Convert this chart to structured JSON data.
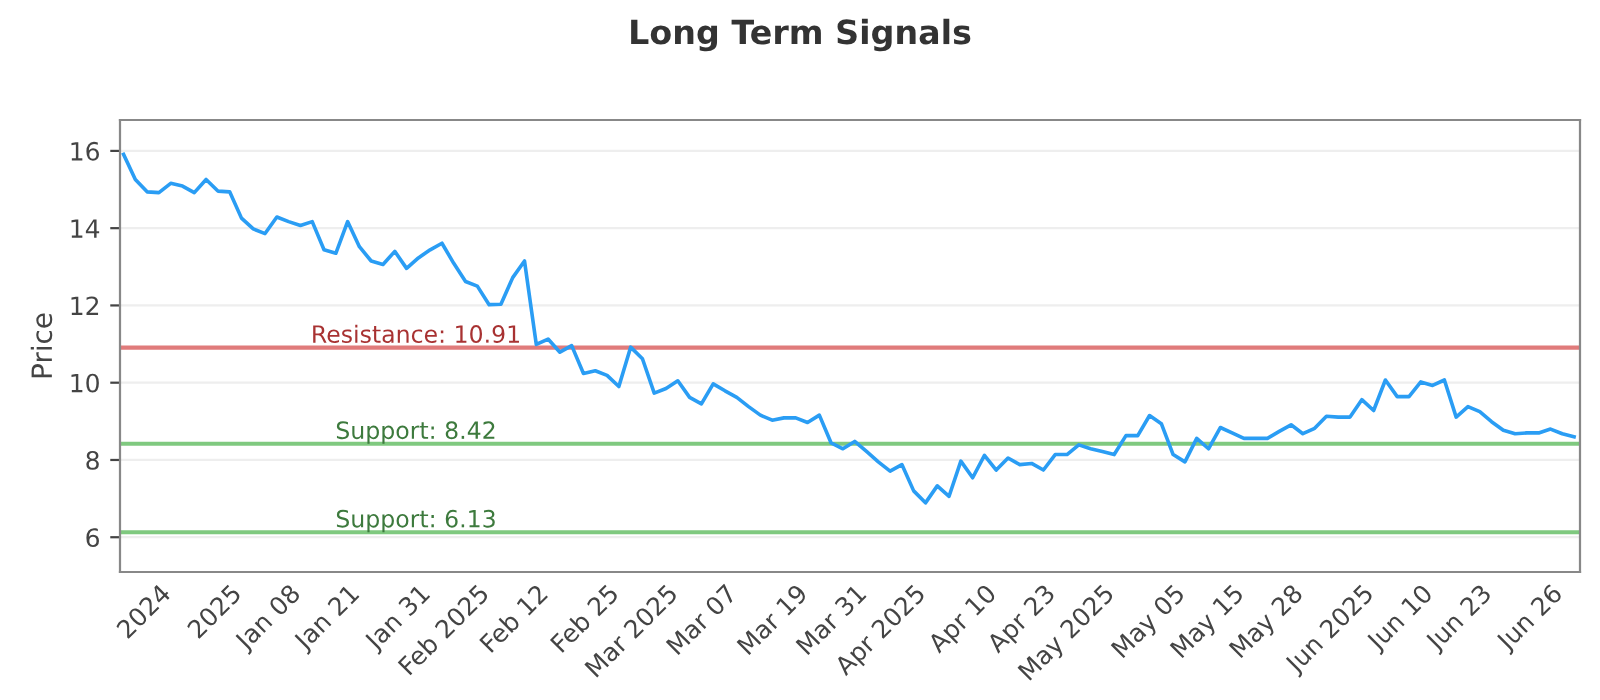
{
  "chart_data": {
    "type": "line",
    "title": "Long Term Signals",
    "ylabel": "Price",
    "series": [
      {
        "color": "#2a9df4",
        "values": [
          15.91,
          15.26,
          14.94,
          14.92,
          15.16,
          15.09,
          14.92,
          15.26,
          14.96,
          14.94,
          14.26,
          13.98,
          13.86,
          14.29,
          14.17,
          14.07,
          14.17,
          13.44,
          13.35,
          14.17,
          13.52,
          13.15,
          13.06,
          13.4,
          12.96,
          13.23,
          13.44,
          13.61,
          13.09,
          12.62,
          12.5,
          12.02,
          12.03,
          12.72,
          13.15,
          10.99,
          11.13,
          10.79,
          10.96,
          10.24,
          10.31,
          10.19,
          9.9,
          10.92,
          10.62,
          9.73,
          9.85,
          10.05,
          9.62,
          9.45,
          9.97,
          9.79,
          9.62,
          9.38,
          9.16,
          9.03,
          9.09,
          9.09,
          8.97,
          9.16,
          8.44,
          8.29,
          8.48,
          8.22,
          7.95,
          7.71,
          7.88,
          7.2,
          6.89,
          7.33,
          7.06,
          7.97,
          7.54,
          8.12,
          7.74,
          8.05,
          7.88,
          7.91,
          7.74,
          8.14,
          8.14,
          8.39,
          8.29,
          8.22,
          8.14,
          8.63,
          8.63,
          9.15,
          8.94,
          8.14,
          7.95,
          8.56,
          8.29,
          8.84,
          8.7,
          8.56,
          8.56,
          8.56,
          8.74,
          8.91,
          8.68,
          8.82,
          9.13,
          9.11,
          9.11,
          9.56,
          9.28,
          10.07,
          9.64,
          9.64,
          10.02,
          9.93,
          10.07,
          9.11,
          9.38,
          9.25,
          8.99,
          8.77,
          8.68,
          8.7,
          8.7,
          8.8,
          8.68,
          8.6
        ]
      }
    ],
    "categories": [
      null,
      null,
      null,
      "2024",
      null,
      null,
      null,
      null,
      null,
      "2025",
      null,
      null,
      null,
      null,
      "Jan 08",
      null,
      null,
      null,
      null,
      "Jan 21",
      null,
      null,
      null,
      null,
      null,
      "Jan 31",
      null,
      null,
      null,
      null,
      "Feb 2025",
      null,
      null,
      null,
      null,
      "Feb 12",
      null,
      null,
      null,
      null,
      null,
      "Feb 25",
      null,
      null,
      null,
      null,
      "Mar 2025",
      null,
      null,
      null,
      null,
      "Mar 07",
      null,
      null,
      null,
      null,
      null,
      "Mar 19",
      null,
      null,
      null,
      null,
      "Mar 31",
      null,
      null,
      null,
      null,
      "Apr 2025",
      null,
      null,
      null,
      null,
      null,
      "Apr 10",
      null,
      null,
      null,
      null,
      "Apr 23",
      null,
      null,
      null,
      null,
      "May 2025",
      null,
      null,
      null,
      null,
      null,
      "May 05",
      null,
      null,
      null,
      null,
      "May 15",
      null,
      null,
      null,
      null,
      "May 28",
      null,
      null,
      null,
      null,
      null,
      "Jun 2025",
      null,
      null,
      null,
      null,
      "Jun 10",
      null,
      null,
      null,
      null,
      "Jun 23",
      null,
      null,
      null,
      null,
      null,
      "Jun 26",
      null,
      null
    ],
    "ylim": [
      5.1,
      16.8
    ],
    "yticks": [
      6,
      8,
      10,
      12,
      14,
      16
    ],
    "grid": "y",
    "marker": "none",
    "line_style": "solid",
    "ref_lines": [
      {
        "axis": "y",
        "value": 10.91,
        "label": "Resistance: 10.91",
        "color": "#e07b7b"
      },
      {
        "axis": "y",
        "value": 8.42,
        "label": "Support: 8.42",
        "color": "#7fc97f"
      },
      {
        "axis": "y",
        "value": 6.13,
        "label": "Support: 6.13",
        "color": "#7fc97f"
      }
    ]
  }
}
